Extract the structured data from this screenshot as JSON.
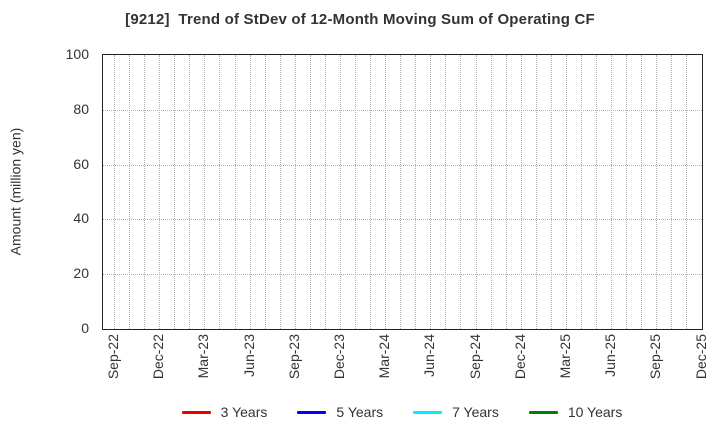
{
  "chart_data": {
    "type": "line",
    "title": "[9212]  Trend of StDev of 12-Month Moving Sum of Operating CF",
    "ylabel": "Amount (million yen)",
    "xlabel": "",
    "ylim": [
      0,
      100
    ],
    "yticks": [
      0,
      20,
      40,
      60,
      80,
      100
    ],
    "categories": [
      "Sep-22",
      "Dec-22",
      "Mar-23",
      "Jun-23",
      "Sep-23",
      "Dec-23",
      "Mar-24",
      "Jun-24",
      "Sep-24",
      "Dec-24",
      "Mar-25",
      "Jun-25",
      "Sep-25",
      "Dec-25"
    ],
    "minor_ticks_per_category": 3,
    "grid": "dotted",
    "legend_position": "bottom-center",
    "series": [
      {
        "name": "3 Years",
        "color": "#ee0000",
        "values": []
      },
      {
        "name": "5 Years",
        "color": "#0000ee",
        "values": []
      },
      {
        "name": "7 Years",
        "color": "#00eeff",
        "values": []
      },
      {
        "name": "10 Years",
        "color": "#008000",
        "values": []
      }
    ],
    "axis_color": "#222222",
    "grid_color": "#b0b0b0",
    "text_color": "#333333"
  }
}
